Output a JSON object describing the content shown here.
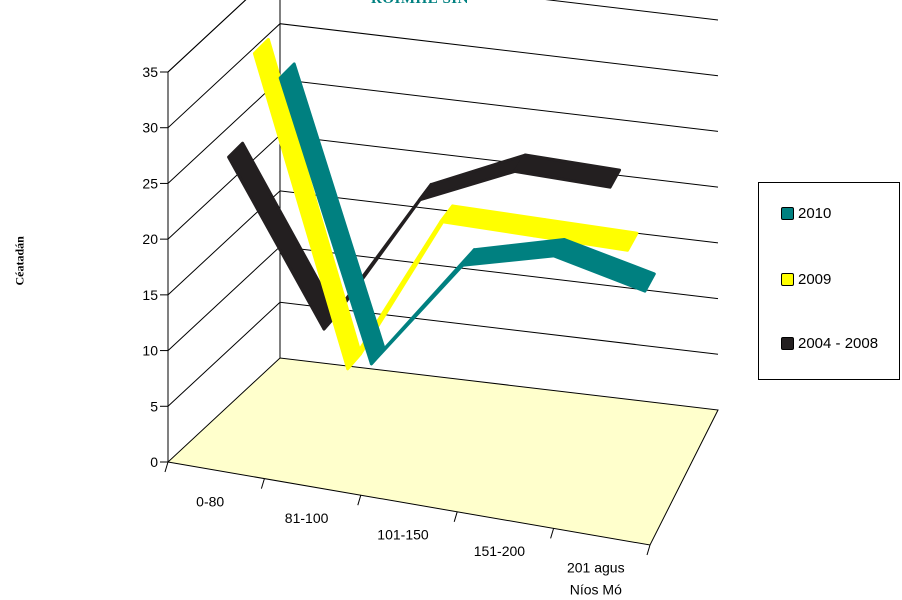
{
  "chart_data": {
    "type": "line",
    "title": "ROIMHE SIN",
    "ylabel": "Céatadán",
    "xlabel": "",
    "ylim": [
      0,
      35
    ],
    "yticks": [
      0,
      5,
      10,
      15,
      20,
      25,
      30,
      35
    ],
    "categories": [
      "0-80",
      "81-100",
      "101-150",
      "151-200",
      "201 agus Níos Mó"
    ],
    "grid": true,
    "view": "3d",
    "legend_position": "right",
    "series": [
      {
        "name": "2010",
        "color": "#008080",
        "values": [
          29.5,
          5,
          15,
          17,
          15
        ]
      },
      {
        "name": "2009",
        "color": "#ffff00",
        "values": [
          34,
          7,
          21.5,
          21.5,
          21.5
        ]
      },
      {
        "name": "2004 - 2008",
        "color": "#231f20",
        "values": [
          27,
          13,
          26,
          30,
          30
        ]
      }
    ]
  }
}
